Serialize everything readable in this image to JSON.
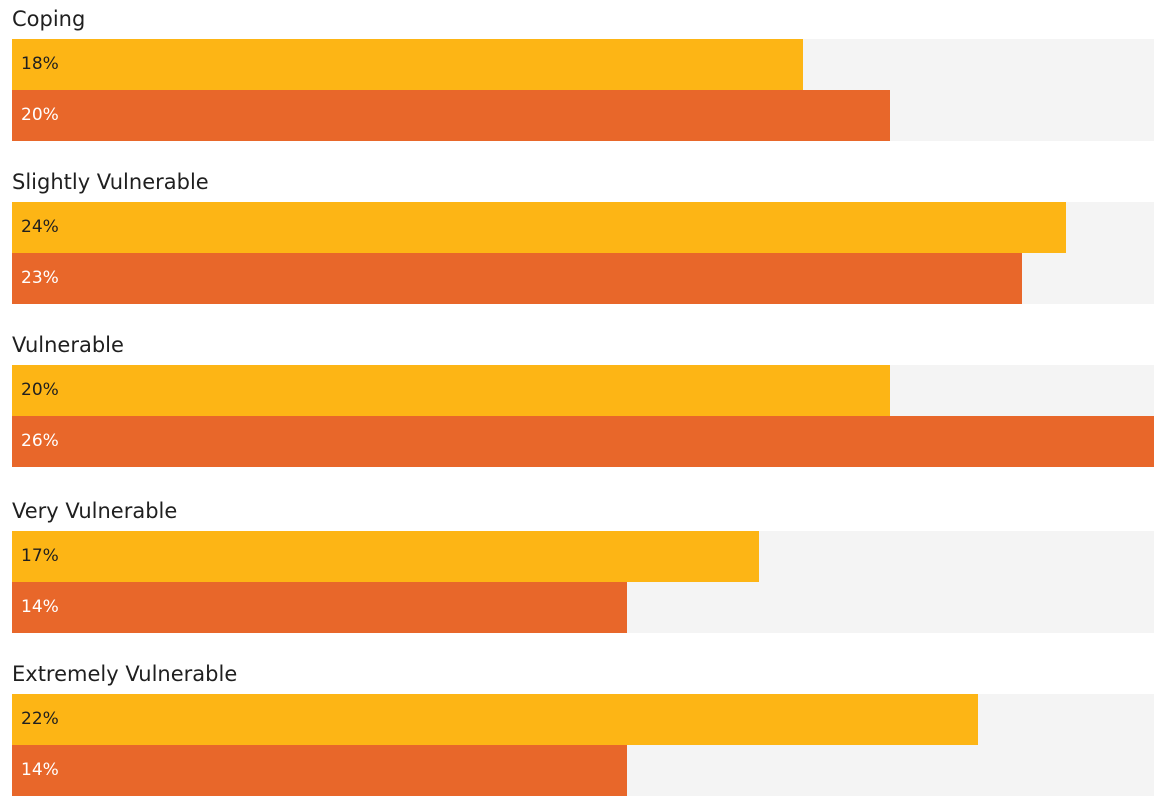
{
  "chart_data": {
    "type": "bar",
    "orientation": "horizontal",
    "categories": [
      "Coping",
      "Slightly Vulnerable",
      "Vulnerable",
      "Very Vulnerable",
      "Extremely Vulnerable"
    ],
    "series": [
      {
        "values": [
          18,
          24,
          20,
          17,
          22
        ],
        "labels": [
          "18%",
          "24%",
          "20%",
          "17%",
          "22%"
        ],
        "color": "#FDB515",
        "label_color": "#1f1f1f"
      },
      {
        "values": [
          20,
          23,
          26,
          14,
          14
        ],
        "labels": [
          "20%",
          "23%",
          "26%",
          "14%",
          "14%"
        ],
        "color": "#E8672A",
        "label_color": "#ffffff"
      }
    ],
    "xlim": [
      0,
      26
    ],
    "grid": false,
    "track_color": "#F4F4F4"
  }
}
